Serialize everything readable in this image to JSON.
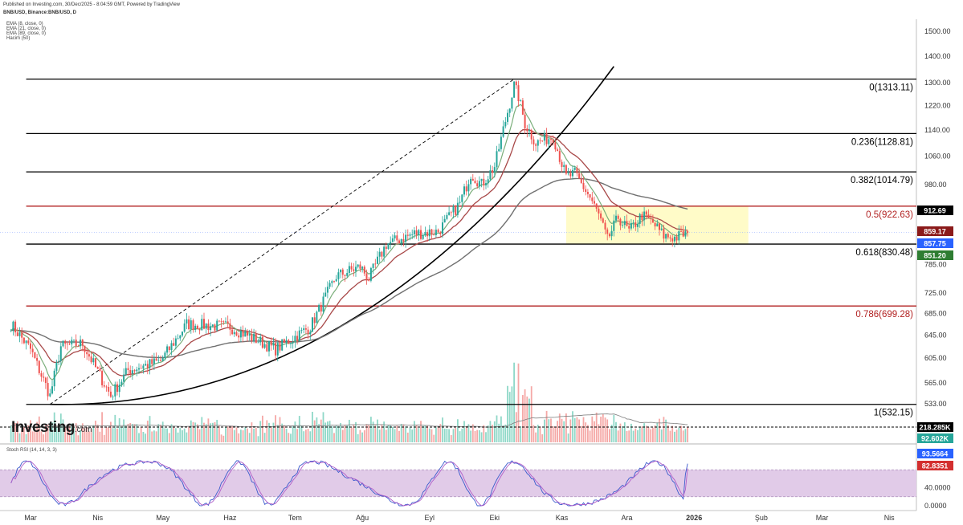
{
  "header": {
    "published": "Published on Investing.com, 30/Dec/2025 - 8:04:59 GMT, Powered by TradingView",
    "symbol": "BNB/USD, Binance:BNB/USD, D"
  },
  "indicators": [
    "EMA (8, close, 0)",
    "EMA (21, close, 0)",
    "EMA (89, close, 0)",
    "Hacim (50)"
  ],
  "logo": {
    "text": "Investing",
    "suffix": ".com"
  },
  "colors": {
    "up": "#26a69a",
    "down": "#ef5350",
    "ema8": "#7aae7a",
    "ema21": "#a84848",
    "ema89": "#707070",
    "fib_black": "#000000",
    "fib_red": "#b22222",
    "zone": "#fffbc8",
    "rsi_band": "#e1cbe8",
    "rsi_k": "#3c5acd",
    "rsi_d": "#b05ec8"
  },
  "chart_data": [
    {
      "type": "candlestick",
      "title": "",
      "x_tick_labels": [
        "Mar",
        "Nis",
        "May",
        "Haz",
        "Tem",
        "Ağu",
        "Eyl",
        "Eki",
        "Kas",
        "Ara",
        "2026",
        "Şub",
        "Mar",
        "Nis"
      ],
      "y_tick_labels": [
        "1500.00",
        "1400.00",
        "1300.00",
        "1220.00",
        "1140.00",
        "1060.00",
        "980.00",
        "785.00",
        "725.00",
        "685.00",
        "645.00",
        "605.00",
        "565.00",
        "533.00"
      ],
      "y_axis_scale": "log",
      "ylim": [
        530,
        1540
      ],
      "anchors_date_close": [
        [
          "2025-02-20",
          665
        ],
        [
          "2025-03-01",
          620
        ],
        [
          "2025-03-10",
          545
        ],
        [
          "2025-03-15",
          625
        ],
        [
          "2025-03-25",
          630
        ],
        [
          "2025-04-07",
          545
        ],
        [
          "2025-04-15",
          585
        ],
        [
          "2025-04-30",
          600
        ],
        [
          "2025-05-12",
          665
        ],
        [
          "2025-06-01",
          660
        ],
        [
          "2025-06-22",
          620
        ],
        [
          "2025-07-08",
          660
        ],
        [
          "2025-07-20",
          760
        ],
        [
          "2025-07-31",
          780
        ],
        [
          "2025-08-04",
          755
        ],
        [
          "2025-08-12",
          830
        ],
        [
          "2025-08-25",
          855
        ],
        [
          "2025-09-05",
          860
        ],
        [
          "2025-09-15",
          930
        ],
        [
          "2025-09-20",
          1010
        ],
        [
          "2025-09-25",
          980
        ],
        [
          "2025-10-01",
          1030
        ],
        [
          "2025-10-06",
          1170
        ],
        [
          "2025-10-10",
          1290
        ],
        [
          "2025-10-12",
          1250
        ],
        [
          "2025-10-15",
          1160
        ],
        [
          "2025-10-20",
          1100
        ],
        [
          "2025-10-28",
          1120
        ],
        [
          "2025-11-03",
          1000
        ],
        [
          "2025-11-07",
          1010
        ],
        [
          "2025-11-14",
          945
        ],
        [
          "2025-11-18",
          900
        ],
        [
          "2025-11-22",
          840
        ],
        [
          "2025-11-27",
          895
        ],
        [
          "2025-12-02",
          860
        ],
        [
          "2025-12-08",
          900
        ],
        [
          "2025-12-13",
          880
        ],
        [
          "2025-12-18",
          850
        ],
        [
          "2025-12-23",
          845
        ],
        [
          "2025-12-29",
          857
        ]
      ],
      "fib_levels": [
        {
          "ratio": 0,
          "value": 1313.11,
          "label": "0(1313.11)"
        },
        {
          "ratio": 0.236,
          "value": 1128.81,
          "label": "0.236(1128.81)"
        },
        {
          "ratio": 0.382,
          "value": 1014.79,
          "label": "0.382(1014.79)"
        },
        {
          "ratio": 0.5,
          "value": 922.63,
          "label": "0.5(922.63)"
        },
        {
          "ratio": 0.618,
          "value": 830.48,
          "label": "0.618(830.48)"
        },
        {
          "ratio": 0.786,
          "value": 699.28,
          "label": "0.786(699.28)"
        },
        {
          "ratio": 1,
          "value": 532.15,
          "label": "1(532.15)"
        }
      ],
      "price_tags": [
        {
          "value": 912.69,
          "label": "912.69",
          "color": "#000000"
        },
        {
          "value": 859.17,
          "label": "859.17",
          "color": "#8b1a1a"
        },
        {
          "value": 857.75,
          "label": "857.75",
          "color": "#2962ff"
        },
        {
          "value": 851.2,
          "label": "851.20",
          "color": "#2e7d32"
        }
      ],
      "highlight_zone": {
        "from": "2025-11-03",
        "to": "2026-01-26",
        "low": 830.48,
        "high": 922.63
      },
      "series": [
        {
          "name": "EMA (8, close, 0)",
          "ref": "ema8"
        },
        {
          "name": "EMA (21, close, 0)",
          "ref": "ema21"
        },
        {
          "name": "EMA (89, close, 0)",
          "ref": "ema89"
        }
      ],
      "volume": {
        "name": "Hacim (50)",
        "tags": [
          "218.285K",
          "92.602K"
        ]
      }
    },
    {
      "type": "line",
      "title": "Stoch RSI (14, 14, 3, 3)",
      "ylim": [
        0,
        100
      ],
      "y_tick_labels": [
        "40.0000",
        "0.0000"
      ],
      "band": [
        20,
        80
      ],
      "values": [
        {
          "label": "93.5664",
          "value": 93.5664,
          "color": "#2962ff"
        },
        {
          "label": "82.8351",
          "value": 82.8351,
          "color": "#d32f2f"
        }
      ]
    }
  ]
}
